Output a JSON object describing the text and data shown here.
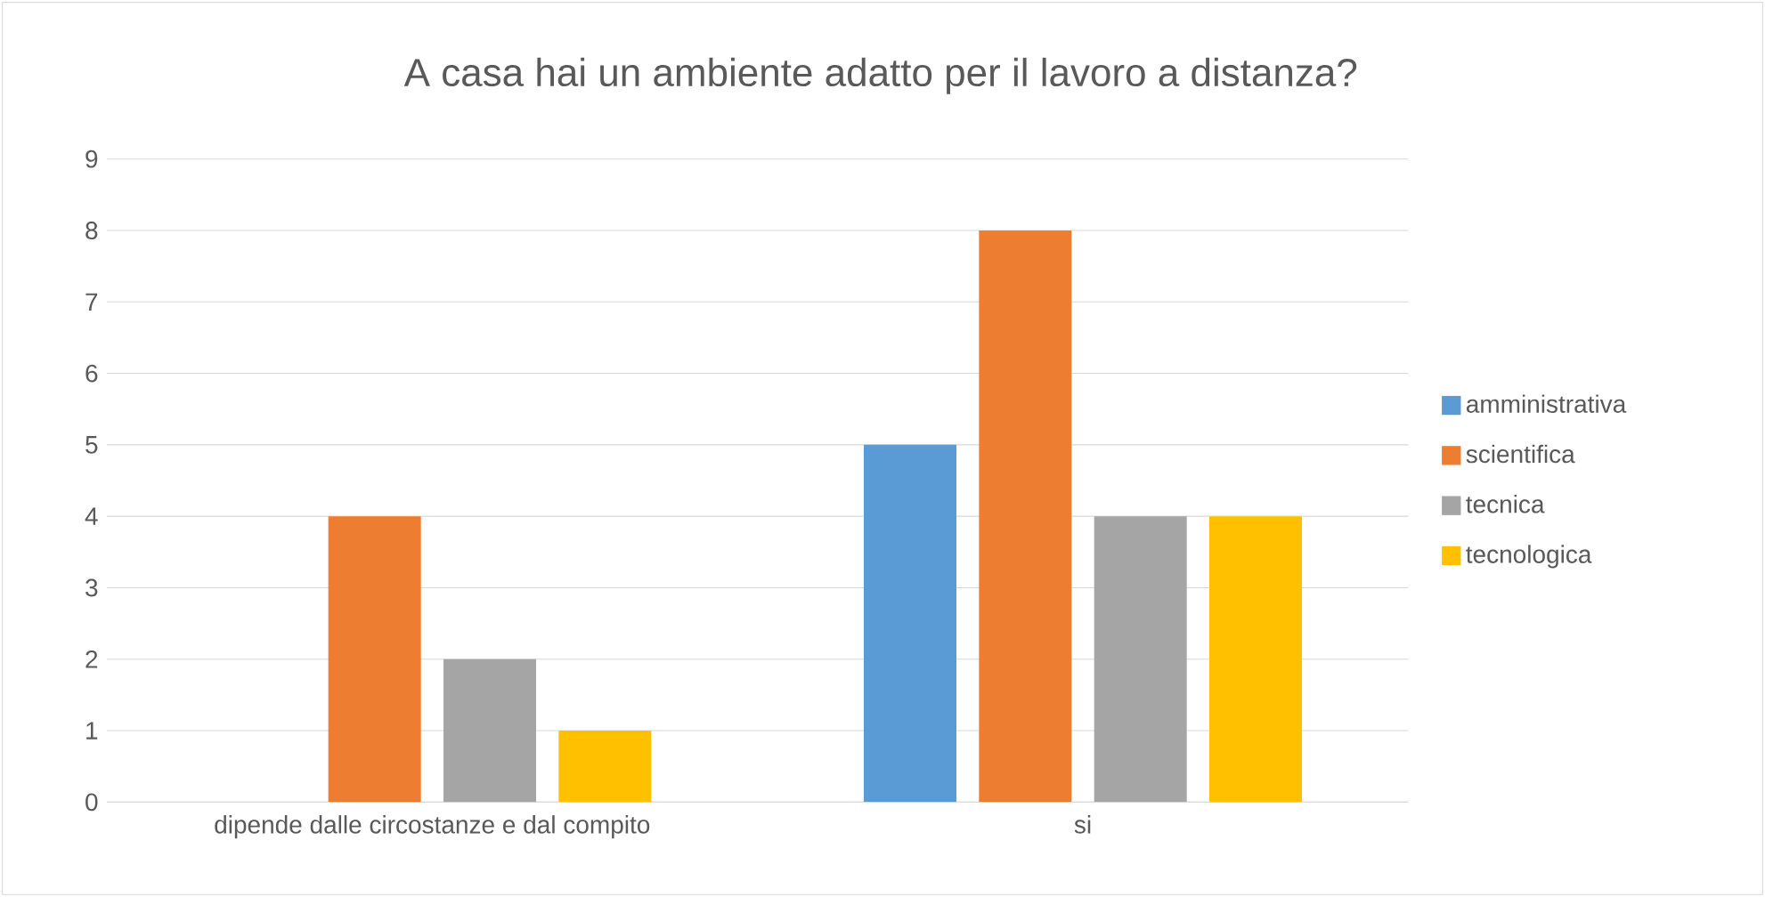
{
  "chart_data": {
    "type": "bar",
    "title": "A casa hai un ambiente adatto per il lavoro a distanza?",
    "categories": [
      "dipende dalle circostanze e dal compito",
      "si"
    ],
    "series": [
      {
        "name": "amministrativa",
        "color": "#5b9bd5",
        "values": [
          0,
          5
        ]
      },
      {
        "name": "scientifica",
        "color": "#ed7d31",
        "values": [
          4,
          8
        ]
      },
      {
        "name": "tecnica",
        "color": "#a5a5a5",
        "values": [
          2,
          4
        ]
      },
      {
        "name": "tecnologica",
        "color": "#ffc000",
        "values": [
          1,
          4
        ]
      }
    ],
    "ylim": [
      0,
      9
    ],
    "yticks": [
      0,
      1,
      2,
      3,
      4,
      5,
      6,
      7,
      8,
      9
    ],
    "grid": "y",
    "legend": "right"
  }
}
